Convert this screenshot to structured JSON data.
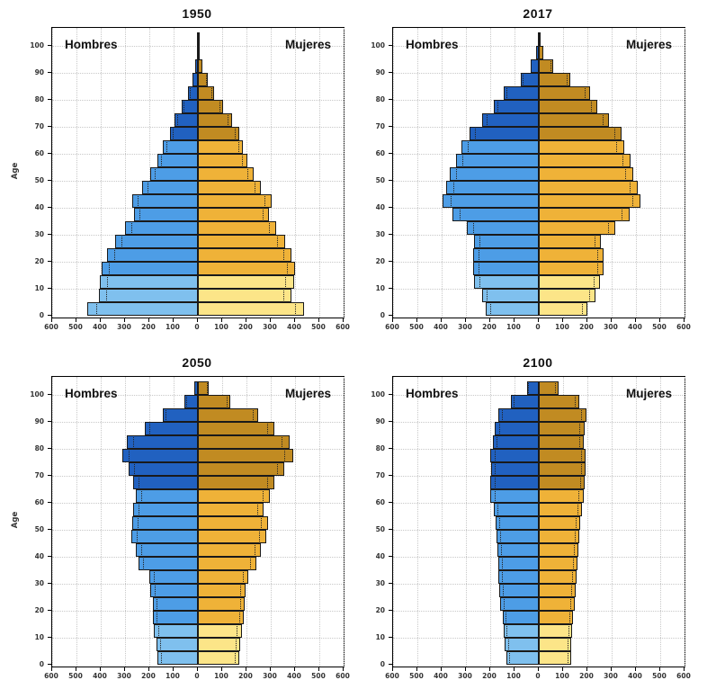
{
  "figure": {
    "description": "Four mirrored population pyramids (men left, women right) for the years 1950, 2017, 2050 and 2100",
    "background": "#ffffff"
  },
  "chart_data": {
    "type": "bar",
    "subtype": "population-pyramid-mirrored",
    "ylabel": "Age",
    "legend": {
      "left": "Hombres",
      "right": "Mujeres"
    },
    "x_tick_labels": [
      "600",
      "500",
      "400",
      "300",
      "200",
      "100",
      "0",
      "100",
      "200",
      "300",
      "400",
      "500",
      "600"
    ],
    "y_tick_labels": [
      "0",
      "10",
      "20",
      "30",
      "40",
      "50",
      "60",
      "70",
      "80",
      "90",
      "100"
    ],
    "x_max_each_side": 600,
    "x_tick_step": 100,
    "grid": true,
    "dotted_marker_note": "thin dotted vertical line drawn inside bars near their outer edge",
    "age_groups": [
      "0-4",
      "5-9",
      "10-14",
      "15-19",
      "20-24",
      "25-29",
      "30-34",
      "35-39",
      "40-44",
      "45-49",
      "50-54",
      "55-59",
      "60-64",
      "65-69",
      "70-74",
      "75-79",
      "80-84",
      "85-89",
      "90-94",
      "95-99",
      "100+"
    ],
    "color_bands": [
      {
        "ages": "0-14",
        "hombres": "#7fc0ee",
        "mujeres": "#fce588"
      },
      {
        "ages": "15-64",
        "hombres": "#4d9de6",
        "mujeres": "#efb238"
      },
      {
        "ages": "65+",
        "hombres": "#2161c0",
        "mujeres": "#c18b22"
      }
    ],
    "panels": [
      {
        "title": "1950",
        "hombres": [
          455,
          408,
          404,
          398,
          374,
          340,
          300,
          262,
          272,
          228,
          196,
          168,
          143,
          115,
          95,
          67,
          40,
          22,
          10,
          3,
          1
        ],
        "mujeres": [
          438,
          385,
          395,
          400,
          384,
          358,
          322,
          294,
          302,
          258,
          228,
          204,
          186,
          170,
          140,
          104,
          67,
          42,
          17,
          6,
          2
        ]
      },
      {
        "title": "2017",
        "hombres": [
          220,
          235,
          265,
          270,
          270,
          268,
          295,
          355,
          395,
          380,
          368,
          340,
          318,
          285,
          235,
          185,
          145,
          75,
          35,
          10,
          2
        ],
        "mujeres": [
          200,
          232,
          250,
          268,
          265,
          255,
          315,
          375,
          420,
          408,
          390,
          378,
          350,
          340,
          290,
          240,
          210,
          130,
          60,
          20,
          5
        ]
      },
      {
        "title": "2050",
        "hombres": [
          165,
          170,
          180,
          185,
          186,
          195,
          200,
          245,
          256,
          275,
          271,
          268,
          255,
          265,
          285,
          312,
          291,
          219,
          146,
          56,
          13
        ],
        "mujeres": [
          169,
          174,
          180,
          190,
          194,
          196,
          206,
          240,
          260,
          280,
          288,
          272,
          295,
          315,
          357,
          391,
          376,
          314,
          249,
          133,
          46
        ]
      },
      {
        "title": "2100",
        "hombres": [
          135,
          140,
          145,
          150,
          158,
          163,
          166,
          168,
          170,
          175,
          178,
          185,
          200,
          200,
          198,
          200,
          190,
          180,
          165,
          115,
          50
        ],
        "mujeres": [
          134,
          133,
          137,
          141,
          147,
          152,
          156,
          160,
          163,
          166,
          170,
          178,
          184,
          190,
          194,
          193,
          186,
          188,
          195,
          165,
          80
        ]
      }
    ]
  }
}
